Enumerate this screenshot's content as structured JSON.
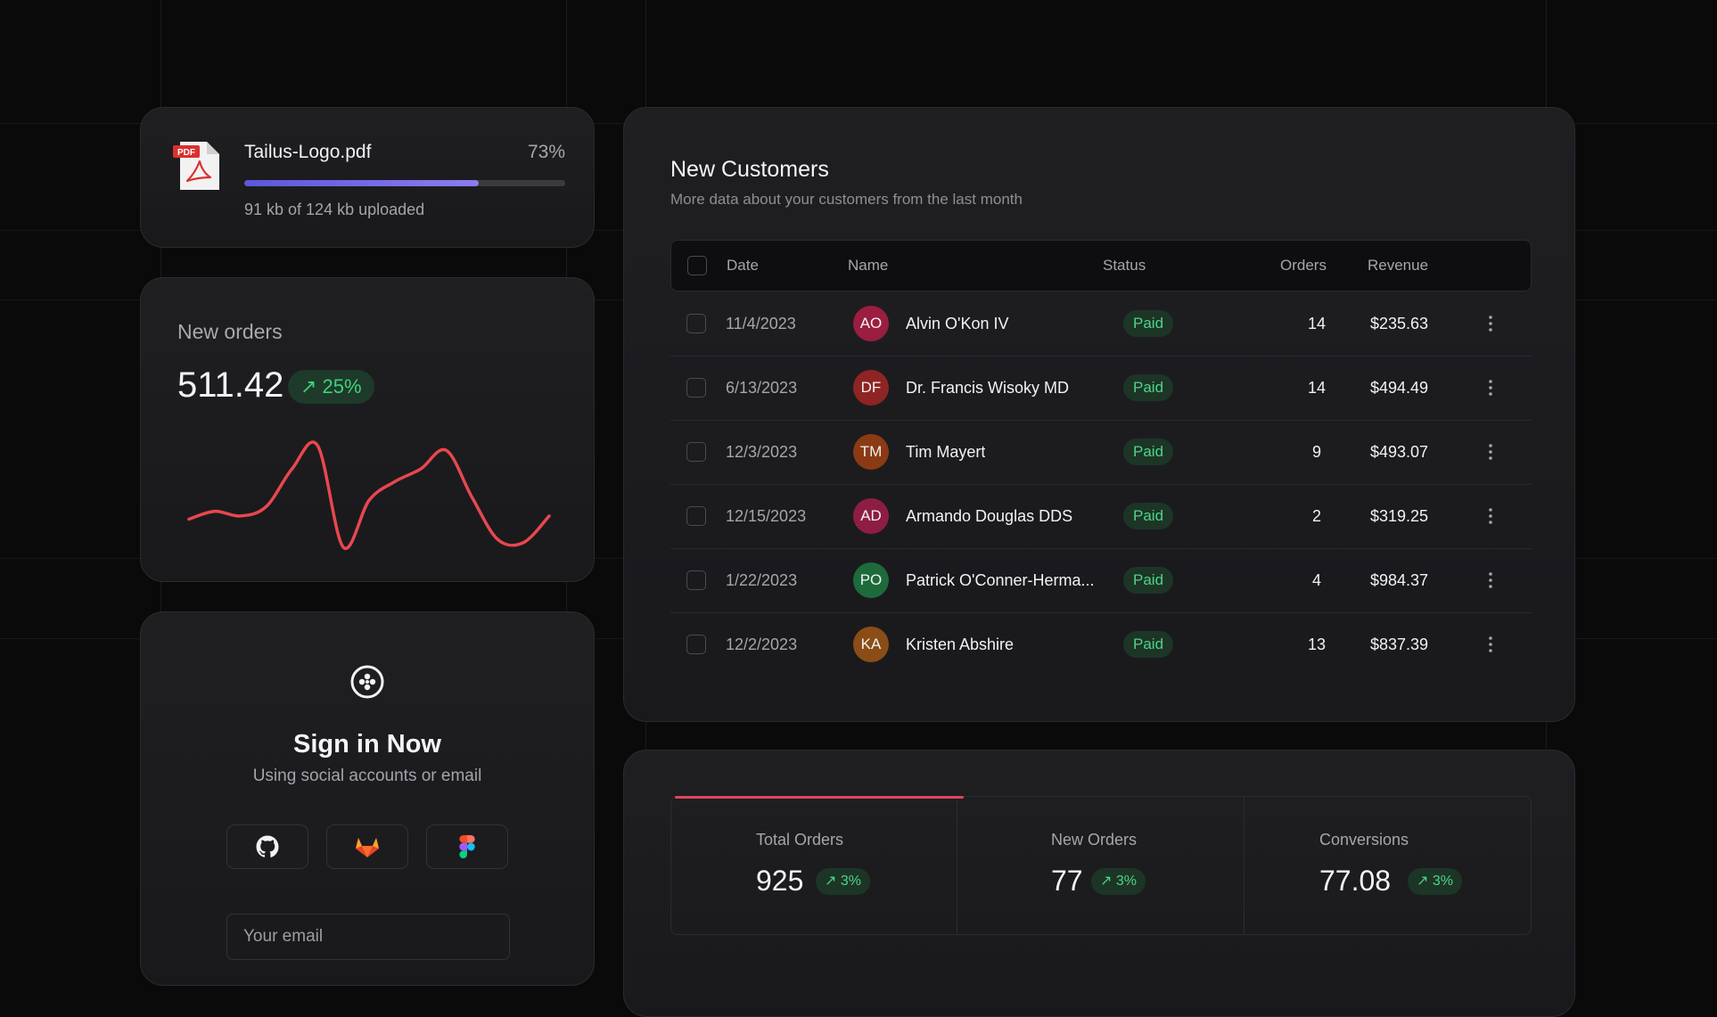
{
  "upload": {
    "file_name": "Tailus-Logo.pdf",
    "percent_label": "73%",
    "progress": 0.73,
    "status": "91 kb of 124 kb uploaded",
    "file_icon": "pdf-file-icon",
    "pdf_tag": "PDF"
  },
  "orders": {
    "title": "New orders",
    "value": "511.42",
    "change": "↗ 25%",
    "line_color": "#e8474f",
    "chart_data": {
      "type": "line",
      "values": [
        48,
        53,
        50,
        56,
        80,
        95,
        30,
        60,
        72,
        80,
        92,
        62,
        35,
        33,
        50
      ]
    }
  },
  "signin": {
    "logo_icon": "flower-logo-icon",
    "title": "Sign in Now",
    "subtitle": "Using social accounts or email",
    "social": [
      "github-icon",
      "gitlab-icon",
      "figma-icon"
    ],
    "email_placeholder": "Your email"
  },
  "customers": {
    "title": "New Customers",
    "subtitle": "More data about your customers from the last month",
    "columns": {
      "date": "Date",
      "name": "Name",
      "status": "Status",
      "orders": "Orders",
      "revenue": "Revenue"
    },
    "rows": [
      {
        "date": "11/4/2023",
        "initials": "AO",
        "name": "Alvin O'Kon IV",
        "status": "Paid",
        "orders": "14",
        "revenue": "$235.63",
        "avatar_color": "#9b1d3f"
      },
      {
        "date": "6/13/2023",
        "initials": "DF",
        "name": "Dr. Francis Wisoky MD",
        "status": "Paid",
        "orders": "14",
        "revenue": "$494.49",
        "avatar_color": "#8f2424"
      },
      {
        "date": "12/3/2023",
        "initials": "TM",
        "name": "Tim Mayert",
        "status": "Paid",
        "orders": "9",
        "revenue": "$493.07",
        "avatar_color": "#8a3a14"
      },
      {
        "date": "12/15/2023",
        "initials": "AD",
        "name": "Armando Douglas DDS",
        "status": "Paid",
        "orders": "2",
        "revenue": "$319.25",
        "avatar_color": "#8e1d44"
      },
      {
        "date": "1/22/2023",
        "initials": "PO",
        "name": "Patrick O'Conner-Herma...",
        "status": "Paid",
        "orders": "4",
        "revenue": "$984.37",
        "avatar_color": "#1d6b3a"
      },
      {
        "date": "12/2/2023",
        "initials": "KA",
        "name": "Kristen Abshire",
        "status": "Paid",
        "orders": "13",
        "revenue": "$837.39",
        "avatar_color": "#8a4d16"
      }
    ]
  },
  "stats": {
    "active_color": "#e0445a",
    "items": [
      {
        "label": "Total Orders",
        "value": "925",
        "change": "↗ 3%"
      },
      {
        "label": "New Orders",
        "value": "77",
        "change": "↗ 3%"
      },
      {
        "label": "Conversions",
        "value": "77.08",
        "change": "↗ 3%"
      }
    ]
  }
}
